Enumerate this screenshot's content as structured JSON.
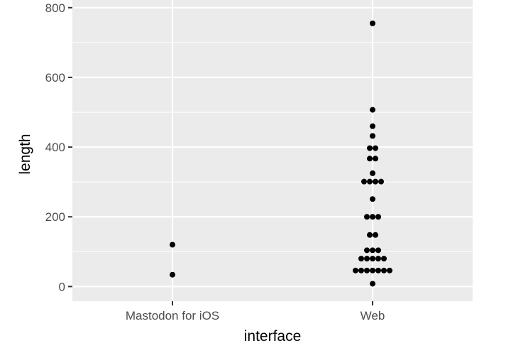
{
  "chart_data": {
    "type": "scatter",
    "xlabel": "interface",
    "ylabel": "length",
    "categories": [
      "Mastodon for iOS",
      "Web"
    ],
    "ylim": [
      -42,
      822
    ],
    "y_ticks": [
      0,
      200,
      400,
      600,
      800
    ],
    "grid": true,
    "panel_background": "#ebebeb",
    "grid_color": "#ffffff",
    "point_color": "#000000",
    "points": [
      {
        "x": "Mastodon for iOS",
        "y": 120
      },
      {
        "x": "Mastodon for iOS",
        "y": 34
      },
      {
        "x": "Web",
        "y": 755
      },
      {
        "x": "Web",
        "y": 507
      },
      {
        "x": "Web",
        "y": 460
      },
      {
        "x": "Web",
        "y": 432
      },
      {
        "x": "Web",
        "y": 397
      },
      {
        "x": "Web",
        "y": 397
      },
      {
        "x": "Web",
        "y": 367
      },
      {
        "x": "Web",
        "y": 367
      },
      {
        "x": "Web",
        "y": 325
      },
      {
        "x": "Web",
        "y": 301
      },
      {
        "x": "Web",
        "y": 301
      },
      {
        "x": "Web",
        "y": 301
      },
      {
        "x": "Web",
        "y": 301
      },
      {
        "x": "Web",
        "y": 251
      },
      {
        "x": "Web",
        "y": 200
      },
      {
        "x": "Web",
        "y": 200
      },
      {
        "x": "Web",
        "y": 200
      },
      {
        "x": "Web",
        "y": 148
      },
      {
        "x": "Web",
        "y": 148
      },
      {
        "x": "Web",
        "y": 104
      },
      {
        "x": "Web",
        "y": 104
      },
      {
        "x": "Web",
        "y": 104
      },
      {
        "x": "Web",
        "y": 80
      },
      {
        "x": "Web",
        "y": 80
      },
      {
        "x": "Web",
        "y": 80
      },
      {
        "x": "Web",
        "y": 80
      },
      {
        "x": "Web",
        "y": 80
      },
      {
        "x": "Web",
        "y": 46
      },
      {
        "x": "Web",
        "y": 46
      },
      {
        "x": "Web",
        "y": 46
      },
      {
        "x": "Web",
        "y": 46
      },
      {
        "x": "Web",
        "y": 46
      },
      {
        "x": "Web",
        "y": 46
      },
      {
        "x": "Web",
        "y": 46
      },
      {
        "x": "Web",
        "y": 8
      }
    ]
  }
}
